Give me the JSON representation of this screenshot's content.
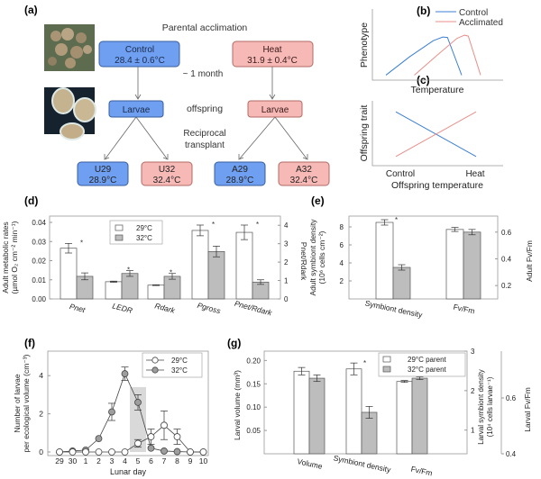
{
  "panel_labels": {
    "a": "(a)",
    "b": "(b)",
    "c": "(c)",
    "d": "(d)",
    "e": "(e)",
    "f": "(f)",
    "g": "(g)"
  },
  "diagram": {
    "parental_acclimation": "Parental acclimation",
    "control_title": "Control",
    "control_temp": "28.4 ± 0.6°C",
    "heat_title": "Heat",
    "heat_temp": "31.9 ± 0.4°C",
    "duration": "~ 1 month",
    "larvae": "Larvae",
    "offspring": "offspring",
    "reciprocal_1": "Reciprocal",
    "reciprocal_2": "transplant",
    "groups": [
      {
        "name": "U29",
        "temp": "28.9°C",
        "color": "blue"
      },
      {
        "name": "U32",
        "temp": "32.4°C",
        "color": "red"
      },
      {
        "name": "A29",
        "temp": "28.9°C",
        "color": "blue"
      },
      {
        "name": "A32",
        "temp": "32.4°C",
        "color": "red"
      }
    ],
    "photos": [
      "coral-colony-photo",
      "coral-larvae-photo"
    ]
  },
  "chart_data": [
    {
      "id": "b",
      "type": "line",
      "title": "",
      "xlabel": "Temperature",
      "ylabel": "Phenotype",
      "legend": [
        "Control",
        "Acclimated"
      ],
      "legend_position": "top-right",
      "colors": {
        "Control": "#3b7fd4",
        "Acclimated": "#e88f8b"
      },
      "series": [
        {
          "name": "Control",
          "x": [
            0,
            0.25,
            0.5,
            0.6,
            0.65,
            0.8
          ],
          "y": [
            0.05,
            0.45,
            0.8,
            0.88,
            0.87,
            0.05
          ]
        },
        {
          "name": "Acclimated",
          "x": [
            0.3,
            0.55,
            0.75,
            0.83,
            0.87,
            1.0
          ],
          "y": [
            0.05,
            0.5,
            0.85,
            0.92,
            0.9,
            0.05
          ]
        }
      ]
    },
    {
      "id": "c",
      "type": "line",
      "title": "",
      "xlabel": "Offspring temperature",
      "ylabel": "Offspring trait",
      "x_ticks": [
        "Control",
        "Heat"
      ],
      "series": [
        {
          "name": "Control",
          "x": [
            0,
            1
          ],
          "y": [
            0.9,
            0.1
          ]
        },
        {
          "name": "Acclimated",
          "x": [
            0,
            1
          ],
          "y": [
            0.1,
            0.9
          ]
        }
      ]
    },
    {
      "id": "d",
      "type": "bar",
      "ylabel": "Adult metabolic rates (µmol O₂ cm⁻² min⁻¹)",
      "y2label": "Pₙₑₜ/R_dark",
      "categories": [
        "P_net",
        "LEDR",
        "R_dark",
        "P_gross",
        "P_net/R_dark"
      ],
      "category_labels": [
        "Pnet",
        "LEDR",
        "Rdark",
        "Pgross",
        "Pnet/Rdark"
      ],
      "ylim": [
        0,
        0.04
      ],
      "yticks": [
        "0.00",
        "0.01",
        "0.02",
        "0.03",
        "0.04"
      ],
      "y2lim": [
        0,
        4.5
      ],
      "y2ticks": [
        "0",
        "1",
        "2",
        "3",
        "4"
      ],
      "legend": [
        "29°C",
        "32°C"
      ],
      "series": [
        {
          "name": "29°C",
          "values": [
            0.0265,
            0.009,
            0.0072,
            0.0358,
            0.0348
          ],
          "errors": [
            0.0025,
            0.0003,
            0.0002,
            0.0028,
            0.0038
          ]
        },
        {
          "name": "32°C",
          "values": [
            0.0118,
            0.0133,
            0.0118,
            0.0248,
            0.0088
          ],
          "errors": [
            0.0018,
            0.0015,
            0.0015,
            0.0028,
            0.0012
          ]
        }
      ],
      "secondary_axis_categories": [
        "P_gross",
        "P_net/R_dark"
      ],
      "significance": [
        true,
        true,
        true,
        true,
        true
      ]
    },
    {
      "id": "e",
      "type": "bar",
      "ylabel": "Adult symbiont density (10⁶ cells cm⁻²)",
      "y2label": "Adult Fv/Fm",
      "categories": [
        "Symbiont density",
        "Fv/Fm"
      ],
      "ylim": [
        0,
        9.2
      ],
      "yticks": [
        "2",
        "4",
        "6",
        "8"
      ],
      "y2lim": [
        0.1,
        0.72
      ],
      "y2ticks": [
        "0.2",
        "0.4",
        "0.6"
      ],
      "series": [
        {
          "name": "29°C",
          "values": [
            8.5,
            0.62
          ],
          "errors": [
            0.3,
            0.015
          ]
        },
        {
          "name": "32°C",
          "values": [
            3.5,
            0.6
          ],
          "errors": [
            0.3,
            0.02
          ]
        }
      ],
      "significance": [
        true,
        false
      ]
    },
    {
      "id": "f",
      "type": "line",
      "xlabel": "Lunar day",
      "ylabel": "Number of larvae per ecological volume (cm⁻³)",
      "x": [
        "29",
        "30",
        "1",
        "2",
        "3",
        "4",
        "5",
        "6",
        "7",
        "8",
        "9",
        "10"
      ],
      "ylim": [
        0,
        5
      ],
      "yticks": [
        "0",
        "2",
        "4"
      ],
      "legend": [
        "29°C",
        "32°C"
      ],
      "highlight": "5",
      "series": [
        {
          "name": "29°C",
          "values": [
            0,
            0,
            0,
            0,
            0,
            0,
            0.45,
            0.8,
            1.4,
            0.8,
            0,
            0
          ],
          "errors": [
            0,
            0,
            0,
            0,
            0,
            0,
            0.2,
            0.4,
            0.75,
            0.4,
            0,
            0
          ]
        },
        {
          "name": "32°C",
          "values": [
            0,
            0.05,
            0.1,
            0.7,
            2.1,
            4.1,
            2.6,
            0.2,
            0.05,
            0.02,
            0,
            0
          ],
          "errors": [
            0,
            0,
            0,
            0,
            0.45,
            0.35,
            0.4,
            0,
            0,
            0,
            0,
            0
          ]
        }
      ]
    },
    {
      "id": "g",
      "type": "bar",
      "ylabel": "Larval volume (mm³)",
      "y2label": "Larval symbiont density (10⁴ cells larvae⁻¹)",
      "y3label": "Larval Fv/Fm",
      "categories": [
        "Volume",
        "Symbiont density",
        "Fv/Fm"
      ],
      "ylim": [
        0,
        0.22
      ],
      "yticks": [
        "0.05",
        "0.10",
        "0.15",
        "0.20"
      ],
      "y2lim": [
        0.4,
        3.0
      ],
      "y2ticks": [
        "1",
        "2",
        "3"
      ],
      "y3lim": [
        0.4,
        0.8
      ],
      "y3ticks": [
        "0.4",
        "0.6",
        "0.8"
      ],
      "legend": [
        "29°C parent",
        "32°C parent"
      ],
      "series": [
        {
          "name": "29°C parent",
          "values": [
            0.177,
            2.55,
            0.155
          ],
          "errors": [
            0.008,
            0.15,
            0.002
          ]
        },
        {
          "name": "32°C parent",
          "values": [
            0.162,
            1.45,
            0.162
          ],
          "errors": [
            0.007,
            0.15,
            0.003
          ]
        }
      ],
      "significance": [
        false,
        true,
        false
      ]
    }
  ],
  "axis_text": {
    "d_ylabel_1": "Adult metabolic rates",
    "d_ylabel_2": "(µmol O₂ cm⁻² min⁻¹)",
    "d_y2label": "Pnet/Rdark",
    "e_ylabel_1": "Adult symbiont density",
    "e_ylabel_2": "(10⁶ cells cm⁻²)",
    "e_y2label": "Adult Fv/Fm",
    "f_ylabel_1": "Number of larvae",
    "f_ylabel_2": "per ecological volume (cm⁻³)",
    "g_ylabel": "Larval volume (mm³)",
    "g_y2label_1": "Larval symbiont density",
    "g_y2label_2": "(10⁴ cells larvae⁻¹)",
    "g_y3label": "Larval Fv/Fm",
    "star": "*"
  }
}
